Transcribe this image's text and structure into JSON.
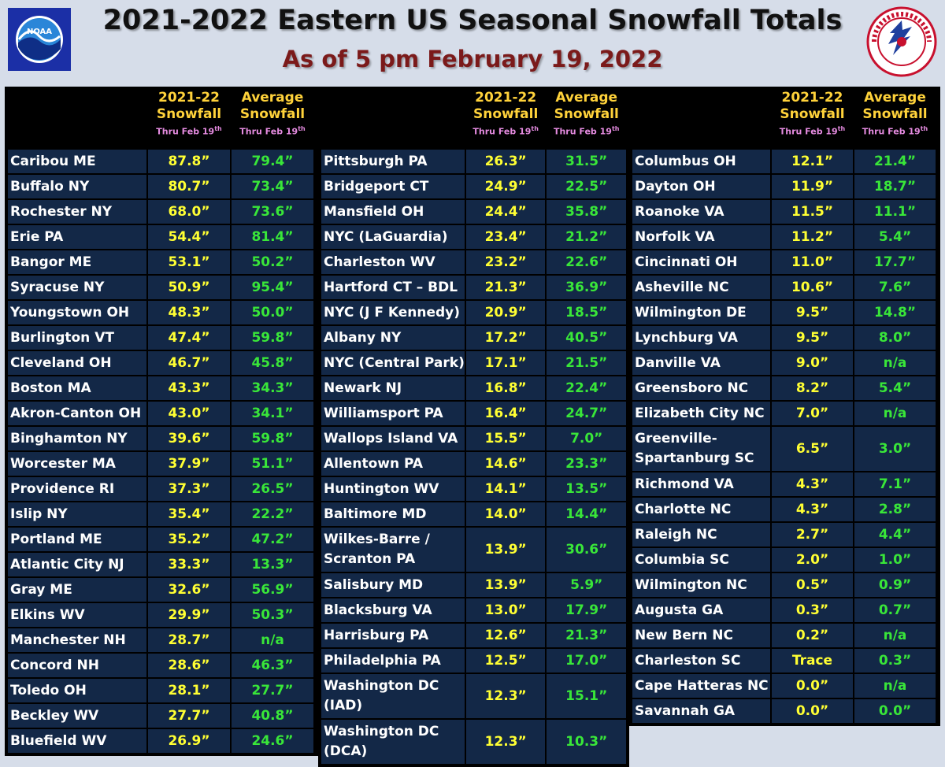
{
  "header": {
    "title": "2021-2022 Eastern US Seasonal Snowfall Totals",
    "subtitle": "As of 5 pm February 19, 2022"
  },
  "logos": {
    "left": "noaa-logo",
    "right": "nws-logo"
  },
  "table_header": {
    "col_season_line1": "2021-22",
    "col_season_line2": "Snowfall",
    "col_avg_line1": "Average",
    "col_avg_line2": "Snowfall",
    "sub_prefix": "Thru Feb 19",
    "sub_suffix": "th"
  },
  "columns": [
    {
      "rows": [
        {
          "city": "Caribou ME",
          "snow": "87.8”",
          "avg": "79.4”"
        },
        {
          "city": "Buffalo NY",
          "snow": "80.7”",
          "avg": "73.4”"
        },
        {
          "city": "Rochester NY",
          "snow": "68.0”",
          "avg": "73.6”"
        },
        {
          "city": "Erie PA",
          "snow": "54.4”",
          "avg": "81.4”"
        },
        {
          "city": "Bangor ME",
          "snow": "53.1”",
          "avg": "50.2”"
        },
        {
          "city": "Syracuse NY",
          "snow": "50.9”",
          "avg": "95.4”"
        },
        {
          "city": "Youngstown OH",
          "snow": "48.3”",
          "avg": "50.0”"
        },
        {
          "city": "Burlington VT",
          "snow": "47.4”",
          "avg": "59.8”"
        },
        {
          "city": "Cleveland OH",
          "snow": "46.7”",
          "avg": "45.8”"
        },
        {
          "city": "Boston MA",
          "snow": "43.3”",
          "avg": "34.3”"
        },
        {
          "city": "Akron-Canton OH",
          "snow": "43.0”",
          "avg": "34.1”"
        },
        {
          "city": "Binghamton NY",
          "snow": "39.6”",
          "avg": "59.8”"
        },
        {
          "city": "Worcester MA",
          "snow": "37.9”",
          "avg": "51.1”"
        },
        {
          "city": "Providence RI",
          "snow": "37.3”",
          "avg": "26.5”"
        },
        {
          "city": "Islip NY",
          "snow": "35.4”",
          "avg": "22.2”"
        },
        {
          "city": "Portland ME",
          "snow": "35.2”",
          "avg": "47.2”"
        },
        {
          "city": "Atlantic City NJ",
          "snow": "33.3”",
          "avg": "13.3”"
        },
        {
          "city": "Gray ME",
          "snow": "32.6”",
          "avg": "56.9”"
        },
        {
          "city": "Elkins WV",
          "snow": "29.9”",
          "avg": "50.3”"
        },
        {
          "city": "Manchester NH",
          "snow": "28.7”",
          "avg": "n/a"
        },
        {
          "city": "Concord NH",
          "snow": "28.6”",
          "avg": "46.3”"
        },
        {
          "city": "Toledo OH",
          "snow": "28.1”",
          "avg": "27.7”"
        },
        {
          "city": "Beckley WV",
          "snow": "27.7”",
          "avg": "40.8”"
        },
        {
          "city": "Bluefield WV",
          "snow": "26.9”",
          "avg": "24.6”"
        }
      ]
    },
    {
      "rows": [
        {
          "city": "Pittsburgh PA",
          "snow": "26.3”",
          "avg": "31.5”"
        },
        {
          "city": "Bridgeport CT",
          "snow": "24.9”",
          "avg": "22.5”"
        },
        {
          "city": "Mansfield OH",
          "snow": "24.4”",
          "avg": "35.8”"
        },
        {
          "city": "NYC (LaGuardia)",
          "snow": "23.4”",
          "avg": "21.2”"
        },
        {
          "city": "Charleston WV",
          "snow": "23.2”",
          "avg": "22.6”"
        },
        {
          "city": "Hartford CT – BDL",
          "snow": "21.3”",
          "avg": "36.9”"
        },
        {
          "city": "NYC (J F Kennedy)",
          "snow": "20.9”",
          "avg": "18.5”"
        },
        {
          "city": "Albany NY",
          "snow": "17.2”",
          "avg": "40.5”"
        },
        {
          "city": "NYC (Central Park)",
          "snow": "17.1”",
          "avg": "21.5”"
        },
        {
          "city": "Newark NJ",
          "snow": "16.8”",
          "avg": "22.4”"
        },
        {
          "city": "Williamsport PA",
          "snow": "16.4”",
          "avg": "24.7”"
        },
        {
          "city": "Wallops Island VA",
          "snow": "15.5”",
          "avg": "7.0”"
        },
        {
          "city": "Allentown PA",
          "snow": "14.6”",
          "avg": "23.3”"
        },
        {
          "city": "Huntington WV",
          "snow": "14.1”",
          "avg": "13.5”"
        },
        {
          "city": "Baltimore MD",
          "snow": "14.0”",
          "avg": "14.4”"
        },
        {
          "city": "Wilkes-Barre / Scranton PA",
          "snow": "13.9”",
          "avg": "30.6”",
          "tall": true
        },
        {
          "city": "Salisbury MD",
          "snow": "13.9”",
          "avg": "5.9”"
        },
        {
          "city": "Blacksburg VA",
          "snow": "13.0”",
          "avg": "17.9”"
        },
        {
          "city": "Harrisburg PA",
          "snow": "12.6”",
          "avg": "21.3”"
        },
        {
          "city": "Philadelphia PA",
          "snow": "12.5”",
          "avg": "17.0”"
        },
        {
          "city": "Washington DC (IAD)",
          "snow": "12.3”",
          "avg": "15.1”",
          "tall": true
        },
        {
          "city": "Washington DC (DCA)",
          "snow": "12.3”",
          "avg": "10.3”",
          "tall": true
        }
      ]
    },
    {
      "rows": [
        {
          "city": "Columbus OH",
          "snow": "12.1”",
          "avg": "21.4”"
        },
        {
          "city": "Dayton OH",
          "snow": "11.9”",
          "avg": "18.7”"
        },
        {
          "city": "Roanoke VA",
          "snow": "11.5”",
          "avg": "11.1”"
        },
        {
          "city": "Norfolk VA",
          "snow": "11.2”",
          "avg": "5.4”"
        },
        {
          "city": "Cincinnati OH",
          "snow": "11.0”",
          "avg": "17.7”"
        },
        {
          "city": "Asheville NC",
          "snow": "10.6”",
          "avg": "7.6”"
        },
        {
          "city": "Wilmington DE",
          "snow": "9.5”",
          "avg": "14.8”"
        },
        {
          "city": "Lynchburg VA",
          "snow": "9.5”",
          "avg": "8.0”"
        },
        {
          "city": "Danville VA",
          "snow": "9.0”",
          "avg": "n/a"
        },
        {
          "city": "Greensboro NC",
          "snow": "8.2”",
          "avg": "5.4”"
        },
        {
          "city": "Elizabeth City NC",
          "snow": "7.0”",
          "avg": "n/a"
        },
        {
          "city": "Greenville-Spartanburg SC",
          "snow": "6.5”",
          "avg": "3.0”",
          "tall": true
        },
        {
          "city": "Richmond VA",
          "snow": "4.3”",
          "avg": "7.1”"
        },
        {
          "city": "Charlotte NC",
          "snow": "4.3”",
          "avg": "2.8”"
        },
        {
          "city": "Raleigh NC",
          "snow": "2.7”",
          "avg": "4.4”"
        },
        {
          "city": "Columbia SC",
          "snow": "2.0”",
          "avg": "1.0”"
        },
        {
          "city": "Wilmington NC",
          "snow": "0.5”",
          "avg": "0.9”"
        },
        {
          "city": "Augusta GA",
          "snow": "0.3”",
          "avg": "0.7”"
        },
        {
          "city": "New Bern NC",
          "snow": "0.2”",
          "avg": "n/a"
        },
        {
          "city": "Charleston SC",
          "snow": "Trace",
          "avg": "0.3”"
        },
        {
          "city": "Cape Hatteras NC",
          "snow": "0.0”",
          "avg": "n/a"
        },
        {
          "city": "Savannah GA",
          "snow": "0.0”",
          "avg": "0.0”"
        }
      ]
    }
  ]
}
